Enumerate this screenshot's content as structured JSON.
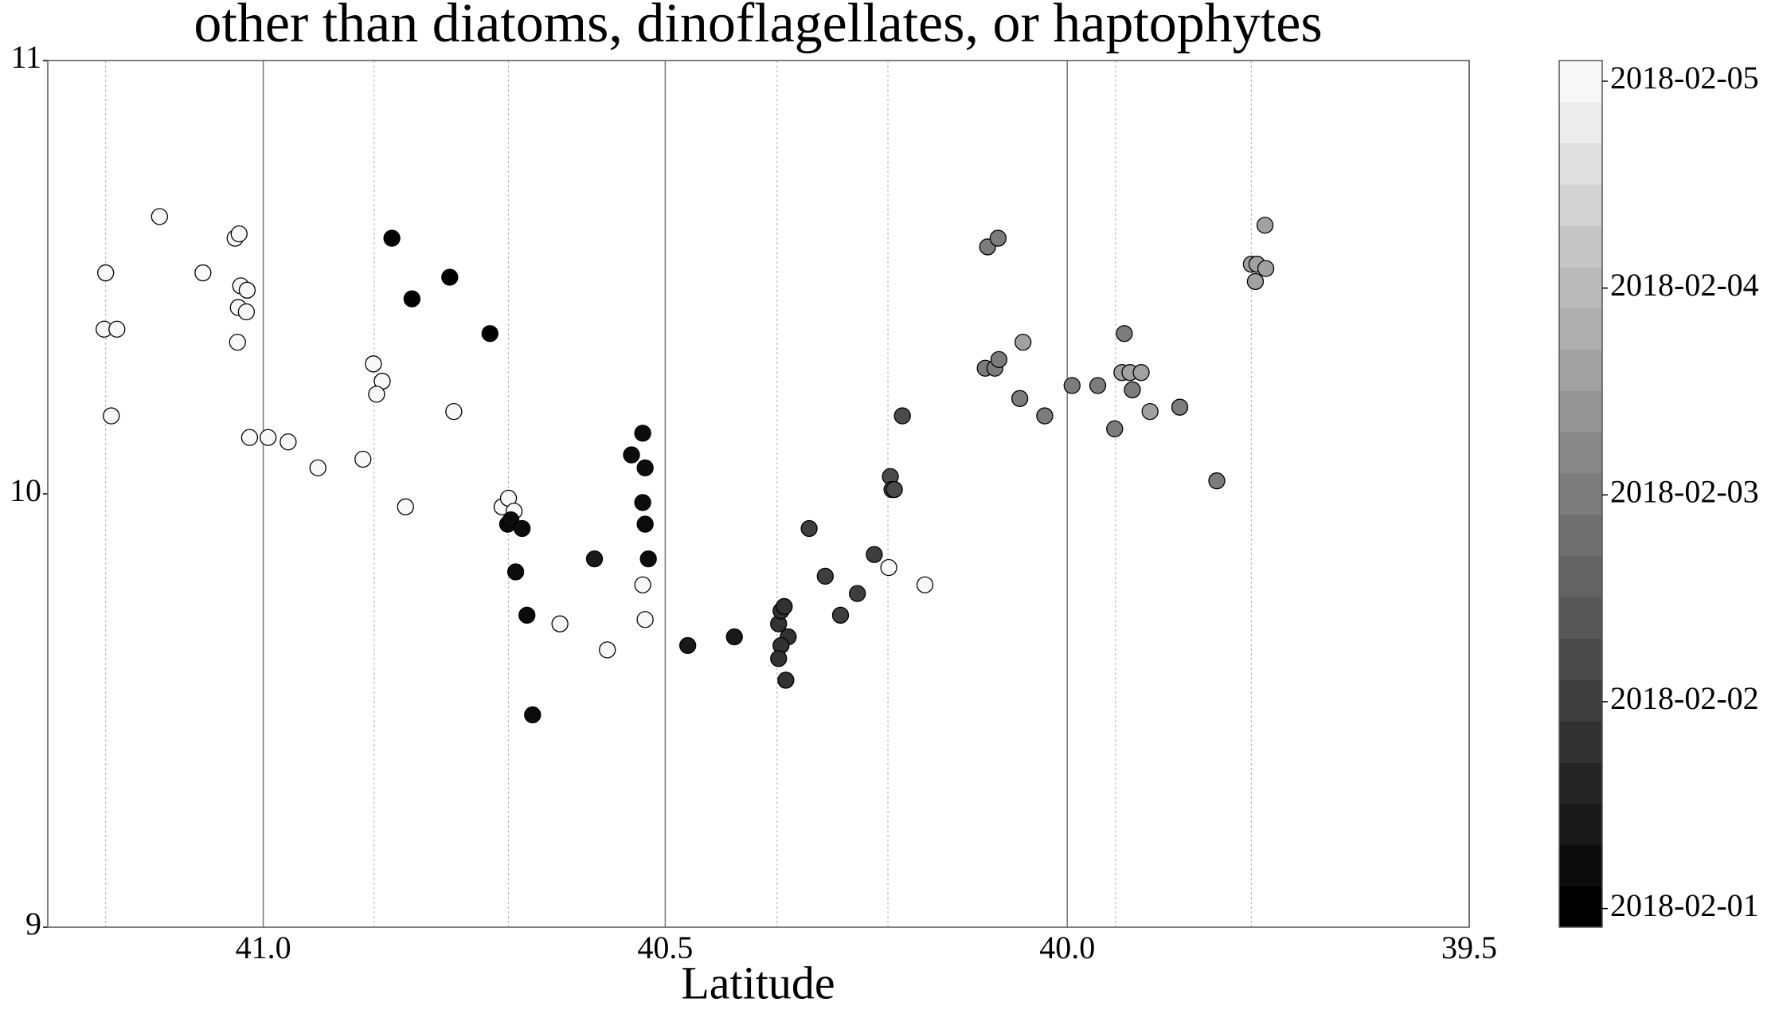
{
  "chart_data": {
    "type": "scatter",
    "title": "other than diatoms, dinoflagellates, or haptophytes",
    "x_label": "Latitude",
    "xlim": [
      41.268,
      39.5
    ],
    "xticks": [
      {
        "value": 41,
        "label": "41.0"
      },
      40.5,
      {
        "value": 40,
        "label": "40.0"
      },
      39.5
    ],
    "minor_xticks": [
      41.196,
      40.862,
      40.695,
      40.361,
      40.223,
      39.94,
      39.771
    ],
    "ylim": [
      9,
      11
    ],
    "yticks": [
      9,
      10,
      11
    ],
    "grid": true,
    "clim": [
      -0.09,
      4.1
    ],
    "colorbar_levels": 21,
    "cticks": [
      {
        "value": 0,
        "label": "2018-02-01"
      },
      {
        "value": 1,
        "label": "2018-02-02"
      },
      {
        "value": 2,
        "label": "2018-02-03"
      },
      {
        "value": 3,
        "label": "2018-02-04"
      },
      {
        "value": 4,
        "label": "2018-02-05"
      }
    ],
    "x": [
      41.196,
      41.198,
      41.182,
      41.189,
      41.129,
      41.075,
      41.035,
      41.03,
      41.028,
      41.02,
      41.031,
      41.021,
      41.032,
      41.017,
      40.994,
      40.969,
      40.932,
      40.876,
      40.863,
      40.852,
      40.859,
      40.823,
      40.763,
      40.703,
      40.695,
      40.688,
      40.631,
      40.572,
      40.528,
      40.525,
      40.222,
      40.177,
      40.84,
      40.815,
      40.768,
      40.718,
      40.696,
      40.692,
      40.678,
      40.686,
      40.672,
      40.665,
      40.588,
      40.542,
      40.528,
      40.525,
      40.528,
      40.525,
      40.521,
      40.472,
      40.414,
      40.359,
      40.356,
      40.352,
      40.347,
      40.356,
      40.359,
      40.35,
      40.321,
      40.301,
      40.282,
      40.261,
      40.24,
      40.22,
      40.218,
      40.215,
      40.205,
      40.099,
      40.086,
      40.102,
      40.09,
      40.085,
      40.055,
      40.059,
      40.028,
      39.994,
      39.962,
      39.941,
      39.929,
      39.932,
      39.922,
      39.908,
      39.919,
      39.897,
      39.86,
      39.814,
      39.771,
      39.764,
      39.766,
      39.754,
      39.753
    ],
    "values": [
      10.51,
      10.38,
      10.38,
      10.18,
      10.64,
      10.51,
      10.59,
      10.6,
      10.48,
      10.47,
      10.43,
      10.42,
      10.35,
      10.13,
      10.13,
      10.12,
      10.06,
      10.08,
      10.3,
      10.26,
      10.23,
      9.97,
      10.19,
      9.97,
      9.99,
      9.96,
      9.7,
      9.64,
      9.79,
      9.71,
      9.83,
      9.79,
      10.59,
      10.45,
      10.5,
      10.37,
      9.93,
      9.94,
      9.92,
      9.82,
      9.72,
      9.49,
      9.85,
      10.09,
      10.14,
      10.06,
      9.98,
      9.93,
      9.85,
      9.65,
      9.67,
      9.7,
      9.73,
      9.74,
      9.67,
      9.65,
      9.62,
      9.57,
      9.92,
      9.81,
      9.72,
      9.77,
      9.86,
      10.04,
      10.01,
      10.01,
      10.18,
      10.57,
      10.59,
      10.29,
      10.29,
      10.31,
      10.35,
      10.22,
      10.18,
      10.25,
      10.25,
      10.15,
      10.37,
      10.28,
      10.28,
      10.28,
      10.24,
      10.19,
      10.2,
      10.03,
      10.53,
      10.53,
      10.49,
      10.62,
      10.52
    ],
    "c": [
      4.6,
      4.6,
      4.6,
      4.6,
      4.5,
      4.6,
      4.6,
      4.5,
      4.6,
      4.6,
      4.6,
      4.6,
      4.6,
      4.6,
      4.6,
      4.6,
      4.6,
      4.6,
      4.6,
      4.6,
      4.6,
      4.6,
      4.5,
      4.5,
      4.5,
      4.5,
      4.4,
      4.4,
      4.3,
      4.3,
      4.3,
      4.3,
      0.0,
      0.0,
      0.0,
      0.0,
      0.3,
      0.3,
      0.3,
      0.3,
      0.3,
      0.2,
      0.4,
      0.3,
      0.2,
      0.3,
      0.3,
      0.3,
      0.3,
      0.4,
      0.5,
      0.8,
      0.8,
      0.8,
      0.8,
      0.8,
      0.8,
      0.8,
      1.0,
      1.0,
      1.0,
      1.1,
      1.1,
      1.2,
      1.2,
      1.2,
      1.3,
      2.0,
      2.0,
      2.1,
      2.1,
      2.1,
      2.6,
      2.1,
      2.1,
      2.1,
      2.1,
      2.1,
      2.1,
      2.6,
      2.6,
      2.6,
      2.1,
      2.6,
      2.1,
      2.1,
      2.6,
      2.6,
      2.6,
      2.6,
      2.6
    ]
  }
}
